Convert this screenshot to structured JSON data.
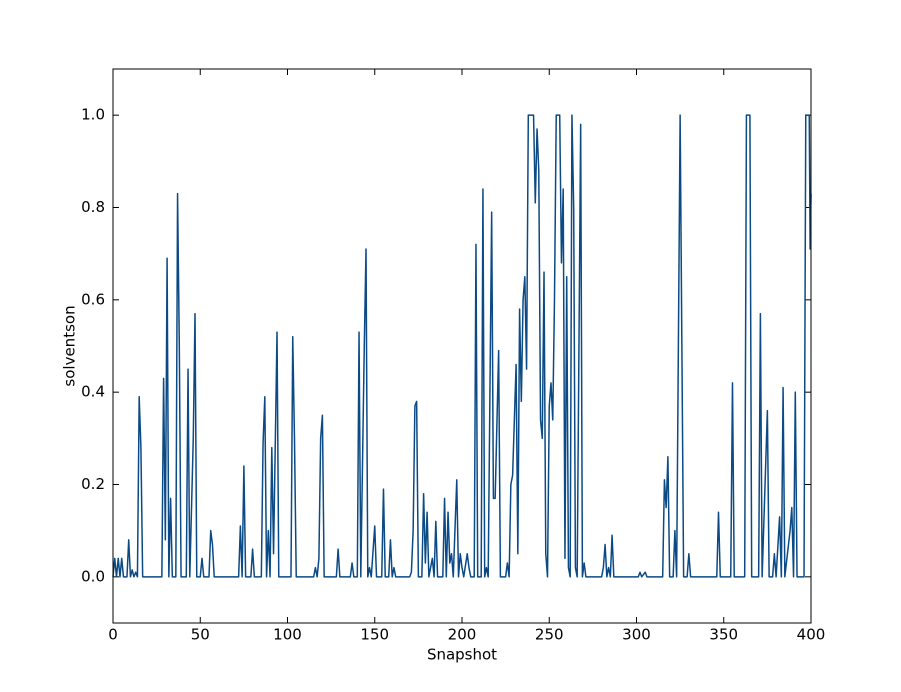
{
  "chart_data": {
    "type": "line",
    "x_label": "Snapshot",
    "y_label": "solventson",
    "x": [
      0,
      1,
      2,
      3,
      4,
      5,
      6,
      8,
      9,
      10,
      11,
      12,
      13,
      14,
      15,
      16,
      17,
      28,
      29,
      30,
      31,
      32,
      33,
      34,
      36,
      37,
      38,
      39,
      42,
      43,
      44,
      46,
      47,
      48,
      50,
      51,
      52,
      55,
      56,
      57,
      58,
      72,
      73,
      74,
      75,
      76,
      79,
      80,
      81,
      85,
      86,
      87,
      88,
      89,
      90,
      91,
      92,
      94,
      95,
      102,
      103,
      104,
      105,
      115,
      116,
      117,
      118,
      119,
      120,
      121,
      128,
      129,
      130,
      136,
      137,
      138,
      140,
      141,
      142,
      144,
      145,
      146,
      147,
      148,
      150,
      151,
      154,
      155,
      156,
      158,
      159,
      160,
      161,
      162,
      170,
      171,
      172,
      173,
      174,
      175,
      177,
      178,
      179,
      180,
      181,
      183,
      184,
      185,
      186,
      189,
      190,
      191,
      192,
      193,
      194,
      195,
      197,
      198,
      199,
      200,
      201,
      203,
      204,
      205,
      207,
      208,
      209,
      211,
      212,
      213,
      214,
      215,
      217,
      218,
      219,
      221,
      222,
      225,
      226,
      227,
      228,
      229,
      231,
      232,
      233,
      234,
      235,
      236,
      237,
      238,
      241,
      242,
      243,
      244,
      245,
      246,
      247,
      248,
      249,
      250,
      251,
      252,
      253,
      254,
      256,
      257,
      258,
      259,
      260,
      261,
      262,
      263,
      264,
      265,
      266,
      268,
      269,
      270,
      271,
      280,
      281,
      282,
      283,
      284,
      285,
      286,
      287,
      301,
      302,
      303,
      305,
      306,
      315,
      316,
      317,
      318,
      319,
      321,
      322,
      323,
      325,
      326,
      327,
      329,
      330,
      331,
      346,
      347,
      348,
      354,
      355,
      356,
      362,
      363,
      365,
      366,
      370,
      371,
      372,
      375,
      376,
      378,
      379,
      380,
      382,
      383,
      384,
      385,
      388,
      389,
      390,
      391,
      392,
      396,
      397,
      399,
      399.5,
      400
    ],
    "series": [
      {
        "name": "solventson",
        "color": "#0b4a84",
        "values": [
          0,
          0.04,
          0,
          0.04,
          0,
          0.04,
          0,
          0,
          0.08,
          0,
          0.015,
          0,
          0.01,
          0,
          0.39,
          0.28,
          0,
          0,
          0.43,
          0.08,
          0.69,
          0,
          0.17,
          0,
          0,
          0.83,
          0.5,
          0,
          0,
          0.45,
          0,
          0.3,
          0.57,
          0,
          0,
          0.04,
          0,
          0,
          0.1,
          0.07,
          0,
          0,
          0.11,
          0,
          0.24,
          0,
          0,
          0.06,
          0,
          0,
          0.29,
          0.39,
          0,
          0.1,
          0,
          0.28,
          0.05,
          0.53,
          0,
          0,
          0.52,
          0.3,
          0,
          0,
          0.02,
          0,
          0.04,
          0.3,
          0.35,
          0,
          0,
          0.06,
          0,
          0,
          0.03,
          0,
          0,
          0.53,
          0,
          0.5,
          0.71,
          0,
          0.02,
          0,
          0.11,
          0,
          0,
          0.19,
          0,
          0,
          0.08,
          0,
          0.02,
          0,
          0,
          0.01,
          0.1,
          0.37,
          0.38,
          0,
          0,
          0.18,
          0.03,
          0.14,
          0,
          0.04,
          0,
          0.12,
          0,
          0,
          0.17,
          0,
          0.14,
          0.03,
          0.05,
          0,
          0.21,
          0,
          0.05,
          0.02,
          0,
          0.05,
          0.02,
          0,
          0,
          0.72,
          0,
          0,
          0.84,
          0,
          0.02,
          0,
          0.79,
          0.17,
          0.17,
          0.49,
          0,
          0,
          0.03,
          0,
          0.2,
          0.22,
          0.46,
          0.05,
          0.58,
          0.38,
          0.6,
          0.65,
          0.45,
          1.0,
          1.0,
          0.81,
          0.97,
          0.88,
          0.34,
          0.3,
          0.66,
          0.05,
          0,
          0.37,
          0.42,
          0.34,
          0.6,
          1.0,
          1.0,
          0.68,
          0.84,
          0.04,
          0.65,
          0.02,
          0,
          1.0,
          0.8,
          0.02,
          0,
          0.98,
          0,
          0.03,
          0,
          0,
          0.02,
          0.07,
          0,
          0.02,
          0,
          0.09,
          0,
          0,
          0.01,
          0,
          0.01,
          0,
          0,
          0.21,
          0.15,
          0.26,
          0,
          0,
          0.1,
          0,
          1.0,
          0.5,
          0,
          0,
          0.05,
          0,
          0,
          0.14,
          0,
          0,
          0.42,
          0,
          0,
          1.0,
          1.0,
          0,
          0,
          0.57,
          0,
          0.36,
          0,
          0,
          0.05,
          0,
          0.13,
          0,
          0.41,
          0,
          0.1,
          0.15,
          0,
          0.4,
          0,
          0,
          1.0,
          1.0,
          0.71,
          0.83
        ]
      }
    ],
    "xlim": [
      0,
      400
    ],
    "xticks": [
      0,
      50,
      100,
      150,
      200,
      250,
      300,
      350,
      400
    ],
    "ylim": [
      -0.1,
      1.1
    ],
    "yticks": [
      {
        "value": 0,
        "label": "0.0"
      },
      {
        "value": 0.2,
        "label": "0.2"
      },
      {
        "value": 0.4,
        "label": "0.4"
      },
      {
        "value": 0.6,
        "label": "0.6"
      },
      {
        "value": 0.8,
        "label": "0.8"
      },
      {
        "value": 1,
        "label": "1.0"
      }
    ],
    "grid": false
  }
}
